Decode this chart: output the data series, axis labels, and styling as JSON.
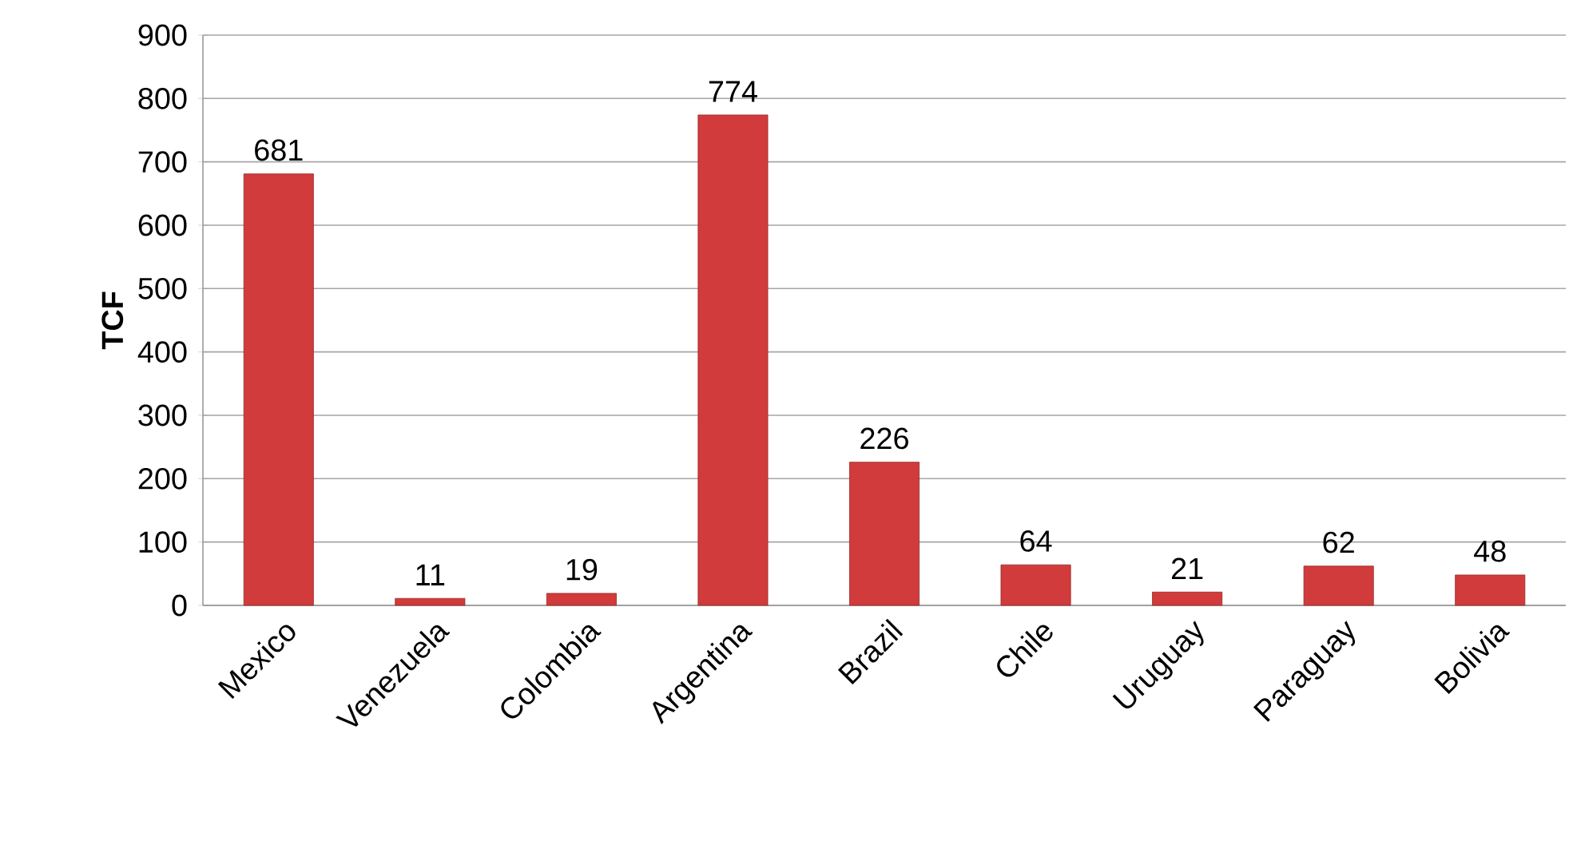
{
  "chart_data": {
    "type": "bar",
    "ylabel": "**TCF**",
    "categories": [
      "Mexico",
      "Venezuela",
      "Colombia",
      "Argentina",
      "Brazil",
      "Chile",
      "Uruguay",
      "Paraguay",
      "Bolivia"
    ],
    "values": [
      681,
      11,
      19,
      774,
      226,
      64,
      21,
      62,
      48
    ],
    "color": "#d23b3b",
    "ylim": [
      0,
      900
    ],
    "yticks": [
      0,
      100,
      200,
      300,
      400,
      500,
      600,
      700,
      800,
      900
    ],
    "grid": "y",
    "data_labels": true
  }
}
